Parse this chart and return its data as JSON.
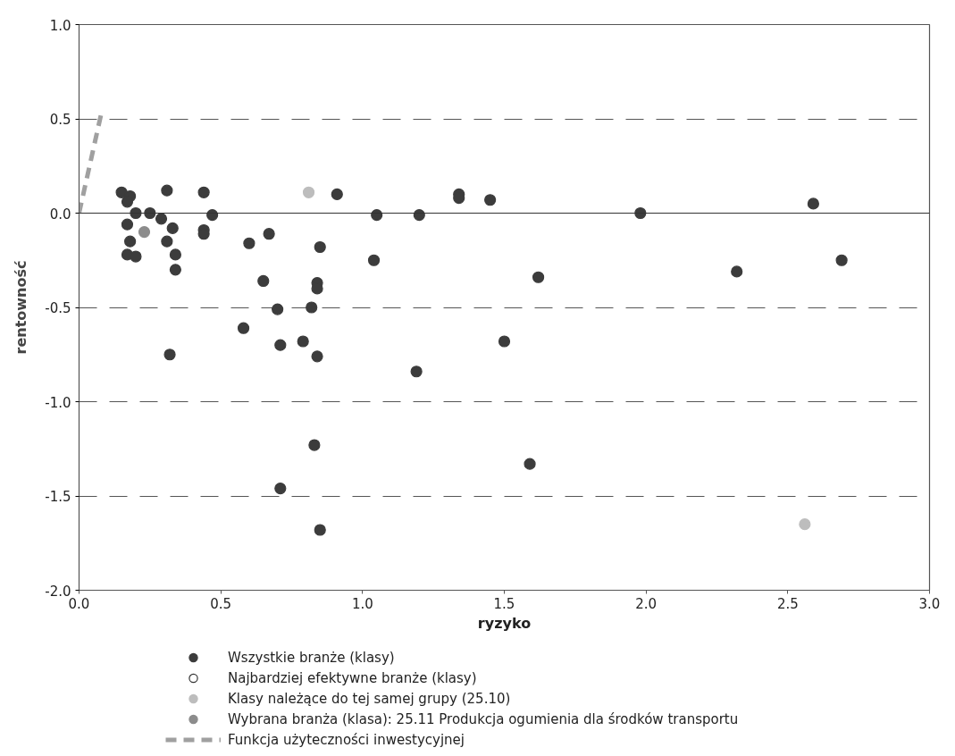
{
  "chart_data": {
    "type": "scatter",
    "xlabel": "ryzyko",
    "ylabel": "rentowność",
    "xlim": [
      0,
      3
    ],
    "ylim": [
      -2,
      1
    ],
    "xticks": [
      {
        "value": 0,
        "label": "0.0"
      },
      {
        "value": 0.5,
        "label": "0.5"
      },
      {
        "value": 1,
        "label": "1.0"
      },
      {
        "value": 1.5,
        "label": "1.5"
      },
      {
        "value": 2,
        "label": "2.0"
      },
      {
        "value": 2.5,
        "label": "2.5"
      },
      {
        "value": 3,
        "label": "3.0"
      }
    ],
    "yticks": [
      {
        "value": -2,
        "label": "-2.0"
      },
      {
        "value": -1.5,
        "label": "-1.5"
      },
      {
        "value": -1,
        "label": "-1.0"
      },
      {
        "value": -0.5,
        "label": "-0.5"
      },
      {
        "value": 0,
        "label": "0.0"
      },
      {
        "value": 0.5,
        "label": "0.5"
      },
      {
        "value": 1,
        "label": "1.0"
      }
    ],
    "grid": "y",
    "legend": "bottom",
    "marker": "circle",
    "series": [
      {
        "name": "Wszystkie branże (klasy)",
        "color": "#3c3c3c",
        "x": [
          0.15,
          0.18,
          0.17,
          0.31,
          0.44,
          0.2,
          0.25,
          0.29,
          0.47,
          0.17,
          0.33,
          0.44,
          0.44,
          0.18,
          0.31,
          0.6,
          0.17,
          0.2,
          0.34,
          0.34,
          0.58,
          0.32,
          0.91,
          1.05,
          1.2,
          0.67,
          0.85,
          1.04,
          0.65,
          0.84,
          0.84,
          0.7,
          0.82,
          0.71,
          0.79,
          0.84,
          1.19,
          0.83,
          0.71,
          0.85,
          1.34,
          1.34,
          1.45,
          1.62,
          1.5,
          1.59,
          1.98,
          2.59,
          2.32,
          2.69
        ],
        "values": [
          0.11,
          0.09,
          0.06,
          0.12,
          0.11,
          0.0,
          0.0,
          -0.03,
          -0.01,
          -0.06,
          -0.08,
          -0.09,
          -0.11,
          -0.15,
          -0.15,
          -0.16,
          -0.22,
          -0.23,
          -0.22,
          -0.3,
          -0.61,
          -0.75,
          0.1,
          -0.01,
          -0.01,
          -0.11,
          -0.18,
          -0.25,
          -0.36,
          -0.37,
          -0.4,
          -0.51,
          -0.5,
          -0.7,
          -0.68,
          -0.76,
          -0.84,
          -1.23,
          -1.46,
          -1.68,
          0.1,
          0.08,
          0.07,
          -0.34,
          -0.68,
          -1.33,
          0.0,
          0.05,
          -0.31,
          -0.25
        ]
      },
      {
        "name": "Najbardziej efektywne branże (klasy)",
        "color": "#ffffff"
      },
      {
        "name": "Klasy należące do tej samej grupy (25.10)",
        "color": "#bdbdbd",
        "x": [
          0.81,
          2.56
        ],
        "values": [
          0.11,
          -1.65
        ]
      },
      {
        "name": "Wybrana branża (klasa): 25.11 Produkcja ogumienia dla środków transportu",
        "color": "#8c8c8c",
        "x": [
          0.23
        ],
        "values": [
          -0.1
        ]
      },
      {
        "name": "Funkcja użyteczności inwestycyjnej",
        "type": "line",
        "color": "#a0a0a0",
        "line_style": "dashed",
        "marker": "none",
        "x": [
          0,
          0.08
        ],
        "values": [
          0,
          0.54
        ]
      }
    ]
  }
}
